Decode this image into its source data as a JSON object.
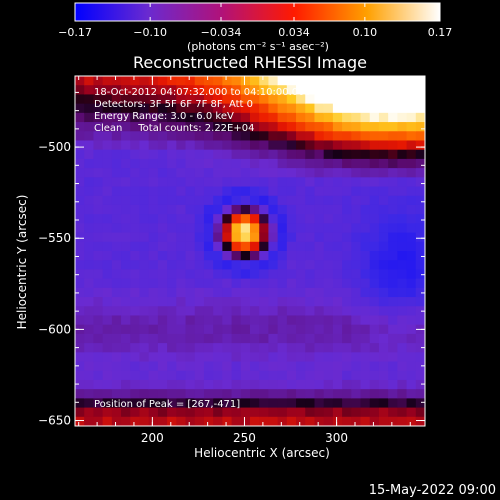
{
  "chart_data": {
    "type": "heatmap",
    "title": "Reconstructed RHESSI Image",
    "xlabel": "Heliocentric X (arcsec)",
    "ylabel": "Heliocentric Y (arcsec)",
    "xlim": [
      158,
      348
    ],
    "ylim": [
      -653,
      -461
    ],
    "x_ticks": [
      200,
      250,
      300
    ],
    "y_ticks": [
      -500,
      -550,
      -600,
      -650
    ],
    "colorbar": {
      "range": [
        -0.17,
        0.17
      ],
      "ticks": [
        -0.17,
        -0.1,
        -0.034,
        0.034,
        0.1,
        0.17
      ],
      "tick_labels": [
        "-0.17",
        "-0.10",
        "-0.034",
        "0.034",
        "0.10",
        "0.17"
      ],
      "unit_label": "(photons cm⁻² s⁻¹ asec⁻²)",
      "colors": [
        "#0000ff",
        "#6a2ad0",
        "#b0127a",
        "#ff1a00",
        "#ffa000",
        "#ffffff"
      ]
    },
    "annotations": [
      "18-Oct-2012 04:07:32.000 to 04:10:00.000",
      "Detectors: 3F 5F 6F 7F 8F, Att 0",
      "Energy Range: 3.0 - 6.0 keV",
      "Clean     Total counts: 2.22E+04"
    ],
    "peak_label": "Position of Peak = [267,-471]",
    "peak": {
      "x": 267,
      "y": -471,
      "value": 0.17
    },
    "sources": [
      {
        "x": 250,
        "y": -547,
        "value": 0.17
      }
    ]
  },
  "footer": {
    "date": "15-May-2022 09:00"
  }
}
